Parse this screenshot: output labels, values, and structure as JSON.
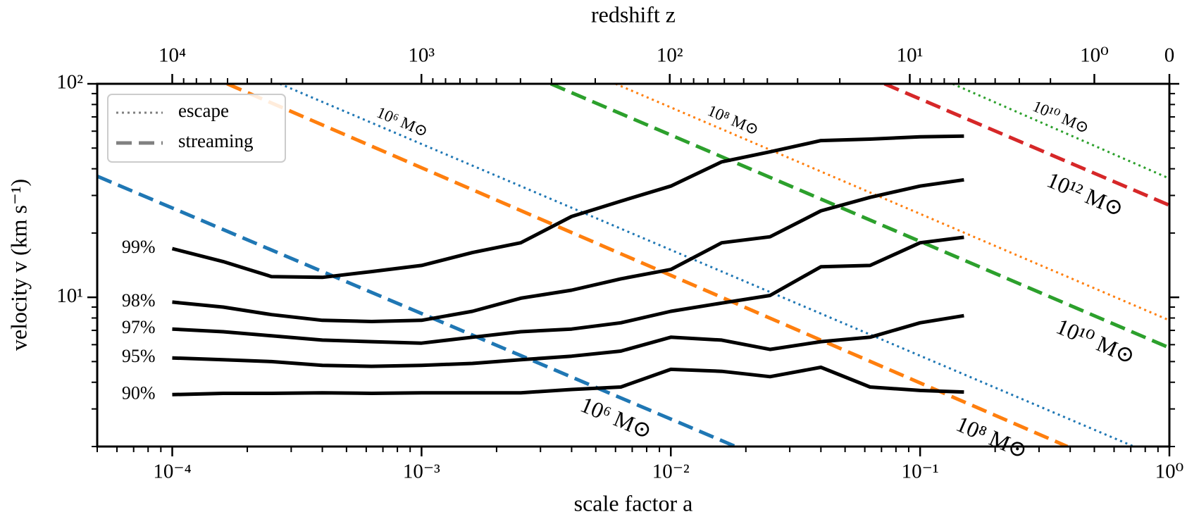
{
  "chart_data": {
    "type": "line",
    "xlabel": "scale factor a",
    "ylabel": "velocity v (km s⁻¹)",
    "x2label": "redshift z",
    "xscale": "log",
    "yscale": "log",
    "xlim": [
      5e-05,
      1
    ],
    "ylim": [
      2,
      100
    ],
    "xticks": [
      {
        "value": 0.0001,
        "label": "10⁻⁴"
      },
      {
        "value": 0.001,
        "label": "10⁻³"
      },
      {
        "value": 0.01,
        "label": "10⁻²"
      },
      {
        "value": 0.1,
        "label": "10⁻¹"
      },
      {
        "value": 1,
        "label": "10⁰"
      }
    ],
    "yticks": [
      {
        "value": 10,
        "label": "10¹"
      },
      {
        "value": 100,
        "label": "10²"
      }
    ],
    "x2ticks": [
      {
        "value": 10000,
        "label": "10⁴"
      },
      {
        "value": 1000,
        "label": "10³"
      },
      {
        "value": 100,
        "label": "10²"
      },
      {
        "value": 10,
        "label": "10¹"
      },
      {
        "value": 1,
        "label": "10⁰"
      },
      0
    ],
    "legend": {
      "position": "upper left",
      "color": "#808080",
      "entries": [
        {
          "label": "escape",
          "style": "dotted"
        },
        {
          "label": "streaming",
          "style": "dashed"
        }
      ]
    },
    "series": [
      {
        "name": "10⁶ M⊙",
        "color": "#1f77b4",
        "style": "dashed",
        "x": [
          5e-05,
          0.0182
        ],
        "values": [
          36.9,
          2.0
        ]
      },
      {
        "name": "10⁸ M⊙",
        "color": "#ff7f0e",
        "style": "dashed",
        "x": [
          0.000166,
          0.39
        ],
        "values": [
          100,
          2.0
        ]
      },
      {
        "name": "10¹⁰ M⊙",
        "color": "#2ca02c",
        "style": "dashed",
        "x": [
          0.0033,
          1
        ],
        "values": [
          100,
          5.8
        ]
      },
      {
        "name": "10¹² M⊙",
        "color": "#d62728",
        "style": "dashed",
        "x": [
          0.072,
          1
        ],
        "values": [
          100,
          27
        ]
      },
      {
        "name": "10⁶ M⊙",
        "color": "#1f77b4",
        "style": "dotted",
        "x": [
          0.00027,
          0.72
        ],
        "values": [
          100,
          2.0
        ]
      },
      {
        "name": "10⁸ M⊙",
        "color": "#ff7f0e",
        "style": "dotted",
        "x": [
          0.006,
          1
        ],
        "values": [
          100,
          7.8
        ]
      },
      {
        "name": "10¹⁰ M⊙",
        "color": "#2ca02c",
        "style": "dotted",
        "x": [
          0.135,
          1
        ],
        "values": [
          100,
          36
        ]
      },
      {
        "name": "99%",
        "color": "#000000",
        "style": "solid",
        "x": [
          0.0001,
          0.00016,
          0.00025,
          0.0004,
          0.00063,
          0.001,
          0.0016,
          0.0025,
          0.004,
          0.0063,
          0.01,
          0.016,
          0.025,
          0.04,
          0.063,
          0.1,
          0.15
        ],
        "values": [
          16.9,
          14.7,
          12.5,
          12.4,
          13.2,
          14.1,
          16.2,
          18.0,
          23.9,
          28.2,
          33.2,
          43.1,
          48.0,
          54.2,
          55.1,
          56.5,
          56.9
        ]
      },
      {
        "name": "98%",
        "color": "#000000",
        "style": "solid",
        "x": [
          0.0001,
          0.00016,
          0.00025,
          0.0004,
          0.00063,
          0.001,
          0.0016,
          0.0025,
          0.004,
          0.0063,
          0.01,
          0.016,
          0.025,
          0.04,
          0.063,
          0.1,
          0.15
        ],
        "values": [
          9.5,
          9.0,
          8.3,
          7.8,
          7.7,
          7.8,
          8.6,
          9.9,
          10.8,
          12.2,
          13.5,
          18.0,
          19.2,
          25.4,
          29.4,
          33.2,
          35.5
        ]
      },
      {
        "name": "97%",
        "color": "#000000",
        "style": "solid",
        "x": [
          0.0001,
          0.00016,
          0.00025,
          0.0004,
          0.00063,
          0.001,
          0.0016,
          0.0025,
          0.004,
          0.0063,
          0.01,
          0.016,
          0.025,
          0.04,
          0.063,
          0.1,
          0.15
        ],
        "values": [
          7.1,
          6.9,
          6.6,
          6.3,
          6.2,
          6.1,
          6.5,
          6.9,
          7.1,
          7.6,
          8.6,
          9.4,
          10.2,
          13.9,
          14.1,
          18.0,
          19.1
        ]
      },
      {
        "name": "95%",
        "color": "#000000",
        "style": "solid",
        "x": [
          0.0001,
          0.00016,
          0.00025,
          0.0004,
          0.00063,
          0.001,
          0.0016,
          0.0025,
          0.004,
          0.0063,
          0.01,
          0.016,
          0.025,
          0.04,
          0.063,
          0.1,
          0.15
        ],
        "values": [
          5.2,
          5.1,
          5.0,
          4.8,
          4.75,
          4.8,
          4.9,
          5.1,
          5.3,
          5.6,
          6.5,
          6.3,
          5.7,
          6.2,
          6.5,
          7.6,
          8.2
        ]
      },
      {
        "name": "90%",
        "color": "#000000",
        "style": "solid",
        "x": [
          0.0001,
          0.00016,
          0.00025,
          0.0004,
          0.00063,
          0.001,
          0.0016,
          0.0025,
          0.004,
          0.0063,
          0.01,
          0.016,
          0.025,
          0.04,
          0.063,
          0.1,
          0.15
        ],
        "values": [
          3.5,
          3.55,
          3.55,
          3.57,
          3.55,
          3.57,
          3.57,
          3.57,
          3.7,
          3.8,
          4.6,
          4.5,
          4.25,
          4.7,
          3.8,
          3.66,
          3.6
        ]
      }
    ]
  }
}
